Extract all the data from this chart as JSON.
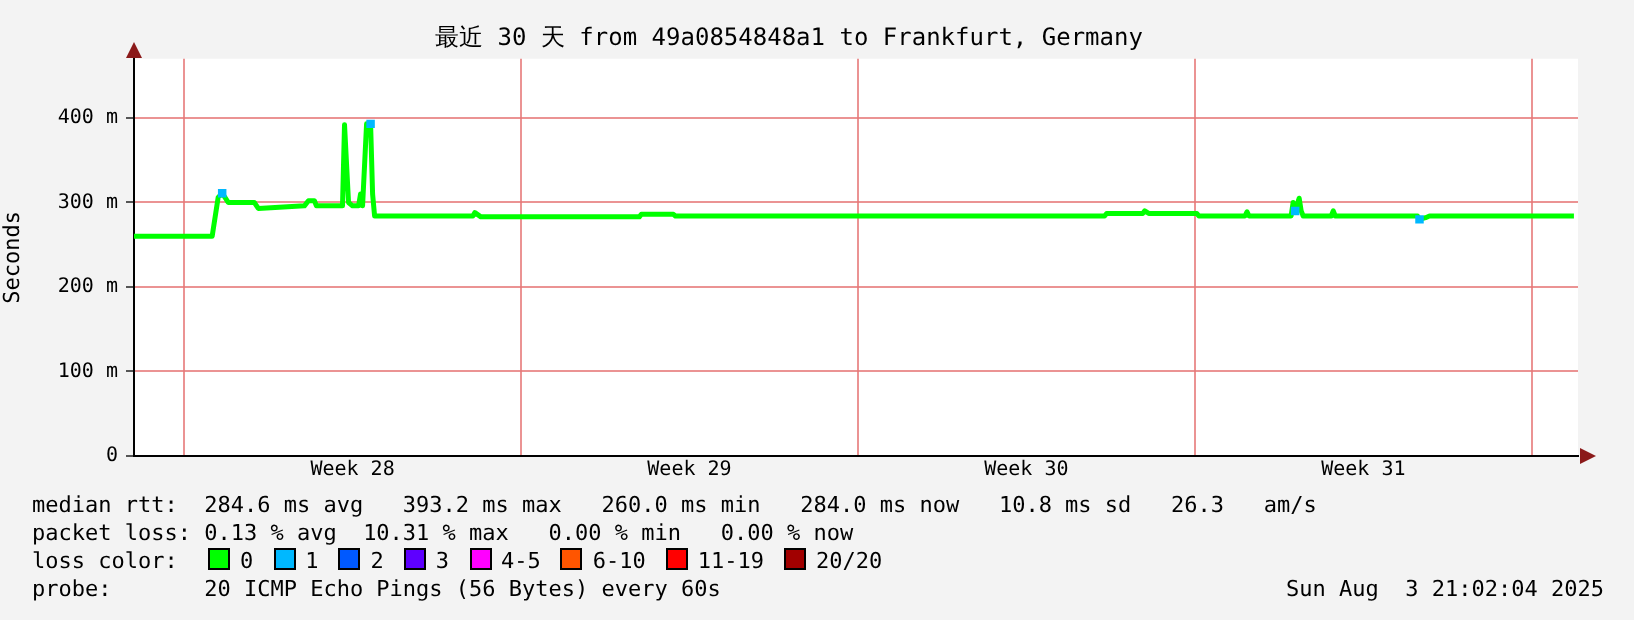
{
  "chart_data": {
    "type": "line",
    "title": "最近 30 天 from 49a0854848a1 to Frankfurt, Germany",
    "ylabel": "Seconds",
    "legend_title": "loss color:",
    "legend": "bottom",
    "grid": true,
    "xlim": [
      "2025-07-04T21:02",
      "2025-08-03T21:02"
    ],
    "xticks": [
      {
        "value": "2025-07-05T22:00",
        "label": null
      },
      {
        "value": "2025-07-09T10:00",
        "label": "Week 28"
      },
      {
        "value": "2025-07-12T22:00",
        "label": null
      },
      {
        "value": "2025-07-16T10:00",
        "label": "Week 29"
      },
      {
        "value": "2025-07-19T22:00",
        "label": null
      },
      {
        "value": "2025-07-23T10:00",
        "label": "Week 30"
      },
      {
        "value": "2025-07-26T22:00",
        "label": null
      },
      {
        "value": "2025-07-30T10:00",
        "label": "Week 31"
      },
      {
        "value": "2025-08-02T22:00",
        "label": null
      }
    ],
    "ylim": [
      0,
      470
    ],
    "yticks": [
      0,
      {
        "value": 100,
        "label": "100 m"
      },
      {
        "value": 200,
        "label": "200 m"
      },
      {
        "value": 300,
        "label": "300 m"
      },
      {
        "value": 400,
        "label": "400 m"
      }
    ],
    "series": [
      {
        "name": "0",
        "color": "#00ff00",
        "x": [
          "2025-07-04T21:02",
          "2025-07-06T12:00",
          "2025-07-06T15:00",
          "2025-07-06T17:00",
          "2025-07-06T20:00",
          "2025-07-07T09:00",
          "2025-07-07T11:00",
          "2025-07-08T10:00",
          "2025-07-08T12:00",
          "2025-07-08T15:00",
          "2025-07-08T16:00",
          "2025-07-09T05:00",
          "2025-07-09T06:00",
          "2025-07-09T08:00",
          "2025-07-09T10:00",
          "2025-07-09T13:00",
          "2025-07-09T14:00",
          "2025-07-09T15:00",
          "2025-07-09T17:00",
          "2025-07-09T19:00",
          "2025-07-09T20:00",
          "2025-07-09T21:00",
          "2025-07-11T22:00",
          "2025-07-11T23:00",
          "2025-07-12T02:00",
          "2025-07-15T09:00",
          "2025-07-15T10:00",
          "2025-07-16T02:00",
          "2025-07-16T03:00",
          "2025-07-25T01:00",
          "2025-07-25T02:00",
          "2025-07-25T20:00",
          "2025-07-25T21:00",
          "2025-07-25T23:00",
          "2025-07-26T23:00",
          "2025-07-27T00:00",
          "2025-07-27T23:00",
          "2025-07-28T00:00",
          "2025-07-28T01:00",
          "2025-07-28T22:00",
          "2025-07-28T23:00",
          "2025-07-29T00:00",
          "2025-07-29T02:00",
          "2025-07-29T03:00",
          "2025-07-29T04:00",
          "2025-07-29T18:00",
          "2025-07-29T19:00",
          "2025-07-29T20:00",
          "2025-07-31T13:00",
          "2025-07-31T14:00",
          "2025-07-31T17:00",
          "2025-07-31T19:00",
          "2025-08-03T19:00"
        ],
        "values": [
          260,
          260,
          306,
          311,
          300,
          300,
          293,
          296,
          302,
          302,
          296,
          296,
          392,
          300,
          296,
          296,
          310,
          296,
          393,
          393,
          310,
          284,
          284,
          288,
          283,
          283,
          286,
          286,
          284,
          284,
          287,
          287,
          290,
          287,
          287,
          284,
          284,
          289,
          284,
          284,
          300,
          290,
          305,
          290,
          284,
          284,
          290,
          284,
          284,
          280,
          282,
          284,
          284
        ]
      },
      {
        "name": "1",
        "color": "#00b8ff",
        "type": "scatter",
        "marker": "square",
        "x": [
          "2025-07-06T17:00",
          "2025-07-09T19:00",
          "2025-07-29T00:00",
          "2025-07-31T14:00"
        ],
        "values": [
          311,
          393,
          290,
          280
        ]
      },
      {
        "name": "2",
        "color": "#0059ff"
      },
      {
        "name": "3",
        "color": "#5e00ff"
      },
      {
        "name": "4-5",
        "color": "#ff00ff"
      },
      {
        "name": "6-10",
        "color": "#ff5500"
      },
      {
        "name": "11-19",
        "color": "#ff0000"
      },
      {
        "name": "20/20",
        "color": "#a10000"
      }
    ],
    "annotations": [
      "median rtt:  284.6 ms avg   393.2 ms max   260.0 ms min   284.0 ms now   10.8 ms sd   26.3   am/s",
      "packet loss: 0.13 % avg  10.31 % max   0.00 % min   0.00 % now",
      "probe:       20 ICMP Echo Pings (56 Bytes) every 60s",
      "Sun Aug  3 21:02:04 2025"
    ]
  }
}
